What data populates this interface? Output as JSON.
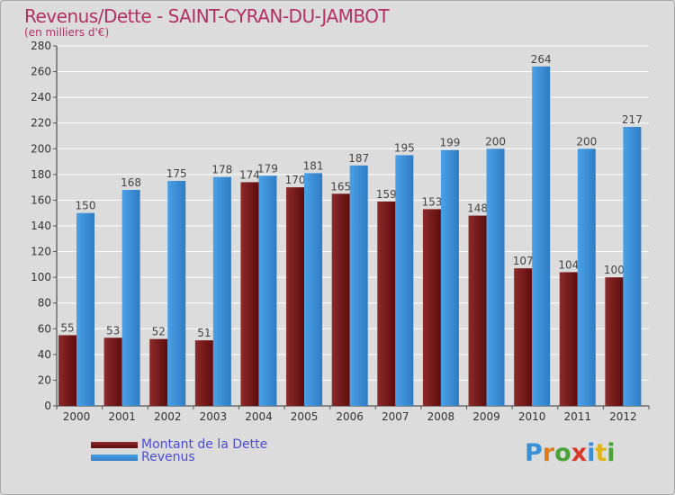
{
  "chart_data": {
    "type": "bar",
    "title": "Revenus/Dette - SAINT-CYRAN-DU-JAMBOT",
    "subtitle": "(en milliers d'€)",
    "categories": [
      "2000",
      "2001",
      "2002",
      "2003",
      "2004",
      "2005",
      "2006",
      "2007",
      "2008",
      "2009",
      "2010",
      "2011",
      "2012"
    ],
    "series": [
      {
        "name": "Montant de la Dette",
        "color": "#7a1515",
        "values": [
          55,
          53,
          52,
          51,
          174,
          170,
          165,
          159,
          153,
          148,
          107,
          104,
          100
        ]
      },
      {
        "name": "Revenus",
        "color": "#3c8fd8",
        "values": [
          150,
          168,
          175,
          178,
          179,
          181,
          187,
          195,
          199,
          200,
          264,
          200,
          217
        ]
      }
    ],
    "ylim": [
      0,
      280
    ],
    "yticks": [
      0,
      20,
      40,
      60,
      80,
      100,
      120,
      140,
      160,
      180,
      200,
      220,
      240,
      260,
      280
    ],
    "grid": true,
    "legend_position": "bottom-left"
  },
  "logo": {
    "letters": [
      {
        "ch": "P",
        "color": "#3a8fd6"
      },
      {
        "ch": "r",
        "color": "#e07b1c"
      },
      {
        "ch": "o",
        "color": "#4aa339"
      },
      {
        "ch": "x",
        "color": "#d63a2c"
      },
      {
        "ch": "i",
        "color": "#3a8fd6"
      },
      {
        "ch": "t",
        "color": "#e0b41c"
      },
      {
        "ch": "i",
        "color": "#4aa339"
      }
    ]
  }
}
